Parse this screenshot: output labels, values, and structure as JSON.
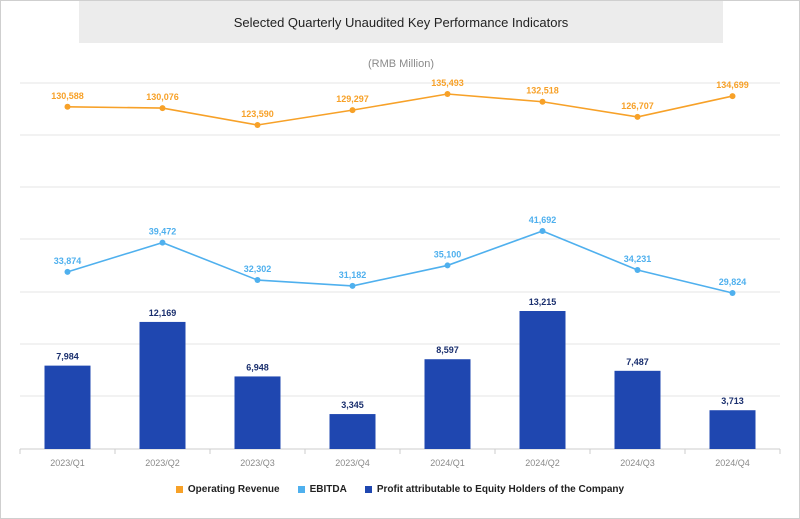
{
  "title": "Selected Quarterly Unaudited Key Performance Indicators",
  "unit": "(RMB Million)",
  "colors": {
    "revenue": "#f7a128",
    "ebitda": "#4fb0ee",
    "profit": "#1f47b0",
    "grid": "#e6e6e6",
    "axis_text": "#8a8a8a"
  },
  "chart_data": {
    "type": "bar",
    "categories": [
      "2023/Q1",
      "2023/Q2",
      "2023/Q3",
      "2023/Q4",
      "2024/Q1",
      "2024/Q2",
      "2024/Q3",
      "2024/Q4"
    ],
    "series": [
      {
        "key": "revenue",
        "name": "Operating Revenue",
        "type": "line",
        "values": [
          130588,
          130076,
          123590,
          129297,
          135493,
          132518,
          126707,
          134699
        ],
        "labels": [
          "130,588",
          "130,076",
          "123,590",
          "129,297",
          "135,493",
          "132,518",
          "126,707",
          "134,699"
        ]
      },
      {
        "key": "ebitda",
        "name": "EBITDA",
        "type": "line",
        "values": [
          33874,
          39472,
          32302,
          31182,
          35100,
          41692,
          34231,
          29824
        ],
        "labels": [
          "33,874",
          "39,472",
          "32,302",
          "31,182",
          "35,100",
          "41,692",
          "34,231",
          "29,824"
        ]
      },
      {
        "key": "profit",
        "name": "Profit attributable to Equity Holders of the Company",
        "type": "bar",
        "values": [
          7984,
          12169,
          6948,
          3345,
          8597,
          13215,
          7487,
          3713
        ],
        "labels": [
          "7,984",
          "12,169",
          "6,948",
          "3,345",
          "8,597",
          "13,215",
          "7,487",
          "3,713"
        ]
      }
    ],
    "grid": true,
    "legend": "bottom-center"
  }
}
